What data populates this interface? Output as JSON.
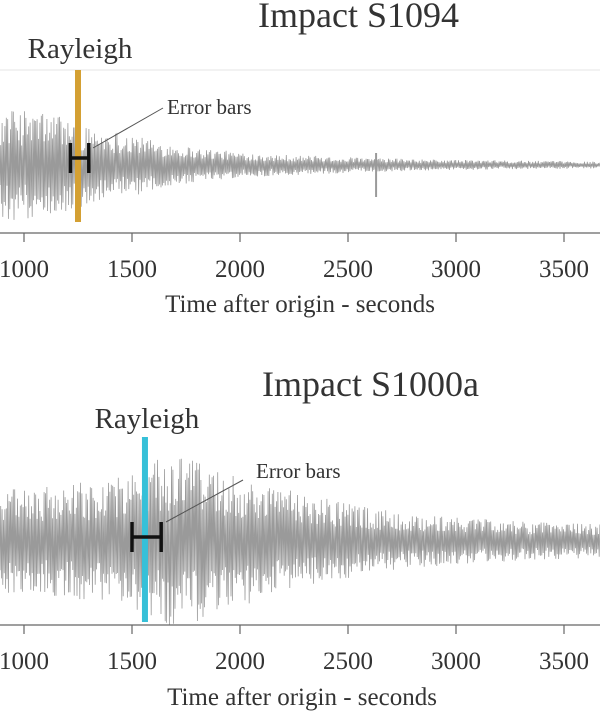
{
  "chart_data": [
    {
      "type": "line",
      "title": "Impact S1094",
      "xlabel": "Time after origin - seconds",
      "ylabel": "",
      "xlim": [
        900,
        3720
      ],
      "x_ticks": [
        1000,
        1500,
        2000,
        2500,
        3000,
        3500
      ],
      "x_tick_labels": [
        "1000",
        "1500",
        "2000",
        "2500",
        "3000",
        "3500"
      ],
      "series_color": "#9a9a9a",
      "series": [
        {
          "description_values": "seismogram amplitude envelope (relative)",
          "x": [
            900,
            1000,
            1100,
            1200,
            1250,
            1300,
            1400,
            1500,
            1600,
            1800,
            2000,
            2200,
            2400,
            2600,
            2630,
            2650,
            2800,
            3000,
            3200,
            3400,
            3600,
            3720
          ],
          "values": [
            0.95,
            0.95,
            0.92,
            0.85,
            0.75,
            0.65,
            0.6,
            0.55,
            0.42,
            0.3,
            0.22,
            0.18,
            0.15,
            0.12,
            0.12,
            0.12,
            0.1,
            0.09,
            0.08,
            0.07,
            0.06,
            0.06
          ]
        }
      ],
      "arrival": {
        "label": "Rayleigh",
        "x": 1250,
        "color": "#d4a033"
      },
      "error_bar": {
        "x_low": 1215,
        "x_high": 1300
      },
      "annotation": "Error bars",
      "spike_x": 2630
    },
    {
      "type": "line",
      "title": "Impact S1000a",
      "xlabel": "Time after origin - seconds",
      "ylabel": "",
      "xlim": [
        900,
        3720
      ],
      "x_ticks": [
        1000,
        1500,
        2000,
        2500,
        3000,
        3500
      ],
      "x_tick_labels": [
        "1000",
        "1500",
        "2000",
        "2500",
        "3000",
        "3500"
      ],
      "series_color": "#9a9a9a",
      "series": [
        {
          "description_values": "seismogram amplitude envelope (relative)",
          "x": [
            900,
            1000,
            1200,
            1400,
            1500,
            1600,
            1700,
            1800,
            2000,
            2200,
            2400,
            2600,
            2800,
            3000,
            3200,
            3400,
            3600,
            3720
          ],
          "values": [
            0.55,
            0.55,
            0.6,
            0.65,
            0.72,
            0.85,
            0.92,
            0.85,
            0.7,
            0.55,
            0.45,
            0.35,
            0.28,
            0.25,
            0.22,
            0.2,
            0.18,
            0.18
          ]
        }
      ],
      "arrival": {
        "label": "Rayleigh",
        "x": 1560,
        "color": "#36c0d8"
      },
      "error_bar": {
        "x_low": 1500,
        "x_high": 1635
      },
      "annotation": "Error bars"
    }
  ]
}
